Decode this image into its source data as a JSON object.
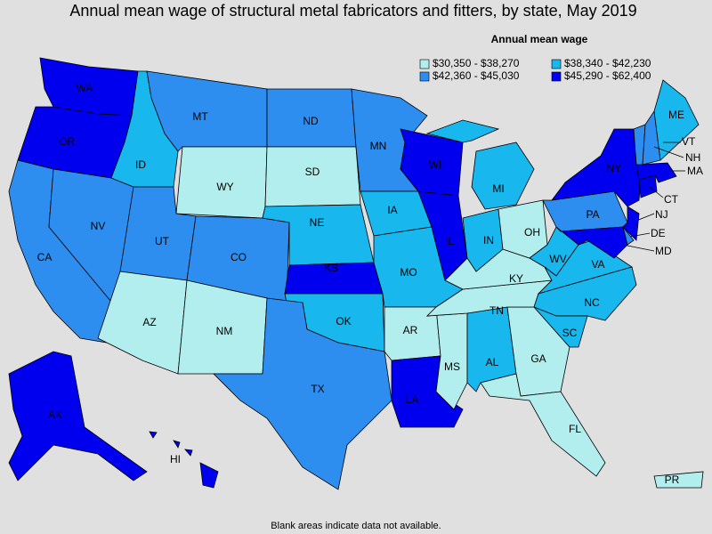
{
  "title": "Annual mean wage of structural metal fabricators and fitters, by state, May 2019",
  "legend": {
    "title": "Annual mean wage",
    "items": [
      {
        "label": "$30,350 - $38,270",
        "color": "#b2eeee"
      },
      {
        "label": "$38,340 - $42,230",
        "color": "#18b8ee"
      },
      {
        "label": "$42,360 - $45,030",
        "color": "#2e8ef0"
      },
      {
        "label": "$45,290 - $62,400",
        "color": "#0000ee"
      }
    ]
  },
  "states": [
    {
      "label": "WA",
      "range": 3
    },
    {
      "label": "OR",
      "range": 3
    },
    {
      "label": "CA",
      "range": 2
    },
    {
      "label": "NV",
      "range": 2
    },
    {
      "label": "ID",
      "range": 1
    },
    {
      "label": "MT",
      "range": 2
    },
    {
      "label": "WY",
      "range": 0
    },
    {
      "label": "UT",
      "range": 2
    },
    {
      "label": "CO",
      "range": 2
    },
    {
      "label": "AZ",
      "range": 0
    },
    {
      "label": "NM",
      "range": 0
    },
    {
      "label": "ND",
      "range": 2
    },
    {
      "label": "SD",
      "range": 0
    },
    {
      "label": "NE",
      "range": 1
    },
    {
      "label": "KS",
      "range": 3
    },
    {
      "label": "OK",
      "range": 1
    },
    {
      "label": "TX",
      "range": 2
    },
    {
      "label": "MN",
      "range": 2
    },
    {
      "label": "IA",
      "range": 1
    },
    {
      "label": "MO",
      "range": 1
    },
    {
      "label": "AR",
      "range": 0
    },
    {
      "label": "LA",
      "range": 3
    },
    {
      "label": "MS",
      "range": 0
    },
    {
      "label": "AL",
      "range": 1
    },
    {
      "label": "GA",
      "range": 0
    },
    {
      "label": "FL",
      "range": 0
    },
    {
      "label": "TN",
      "range": 0
    },
    {
      "label": "KY",
      "range": 0
    },
    {
      "label": "IL",
      "range": 3
    },
    {
      "label": "WI",
      "range": 3
    },
    {
      "label": "IN",
      "range": 1
    },
    {
      "label": "OH",
      "range": 0
    },
    {
      "label": "MI",
      "range": 1
    },
    {
      "label": "WV",
      "range": 1
    },
    {
      "label": "VA",
      "range": 1
    },
    {
      "label": "NC",
      "range": 1
    },
    {
      "label": "SC",
      "range": 1
    },
    {
      "label": "PA",
      "range": 2
    },
    {
      "label": "NY",
      "range": 3
    },
    {
      "label": "NJ",
      "range": 3
    },
    {
      "label": "MD",
      "range": 3
    },
    {
      "label": "DE",
      "range": 2
    },
    {
      "label": "CT",
      "range": 3
    },
    {
      "label": "MA",
      "range": 3
    },
    {
      "label": "VT",
      "range": 2
    },
    {
      "label": "NH",
      "range": 2
    },
    {
      "label": "ME",
      "range": 1
    },
    {
      "label": "AK",
      "range": 3
    },
    {
      "label": "HI",
      "range": 3
    },
    {
      "label": "PR",
      "range": 0
    }
  ],
  "footnote": "Blank areas indicate data not available."
}
